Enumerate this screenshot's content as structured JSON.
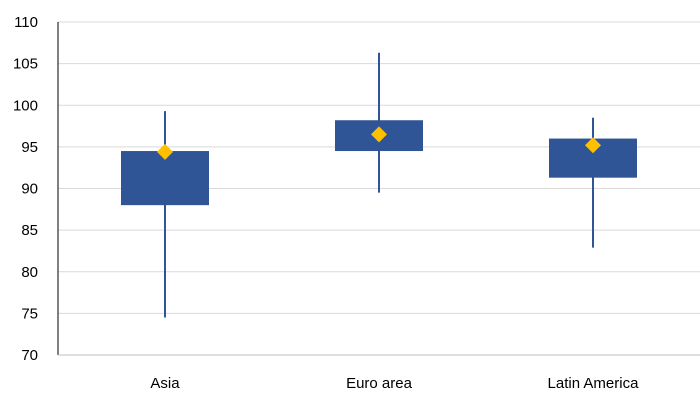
{
  "chart_data": {
    "type": "box",
    "title": "",
    "xlabel": "",
    "ylabel": "",
    "ylim": [
      70,
      110
    ],
    "yticks": [
      70,
      75,
      80,
      85,
      90,
      95,
      100,
      105,
      110
    ],
    "ytick_labels": [
      "70",
      "75",
      "80",
      "85",
      "90",
      "95",
      "100",
      "105",
      "110"
    ],
    "grid": true,
    "legend": "none",
    "categories": [
      "Asia",
      "Euro area",
      "Latin America"
    ],
    "series": [
      {
        "category": "Asia",
        "min": 74.5,
        "q1": 88.0,
        "q3": 94.5,
        "max": 99.3,
        "marker": 94.4
      },
      {
        "category": "Euro area",
        "min": 89.5,
        "q1": 94.5,
        "q3": 98.2,
        "max": 106.3,
        "marker": 96.5
      },
      {
        "category": "Latin America",
        "min": 82.9,
        "q1": 91.3,
        "q3": 96.0,
        "max": 98.5,
        "marker": 95.2
      }
    ],
    "colors": {
      "box": "#2F5597",
      "whisker": "#2F5597",
      "marker": "#FFC000",
      "grid": "#D9D9D9",
      "axis": "#000000"
    }
  }
}
